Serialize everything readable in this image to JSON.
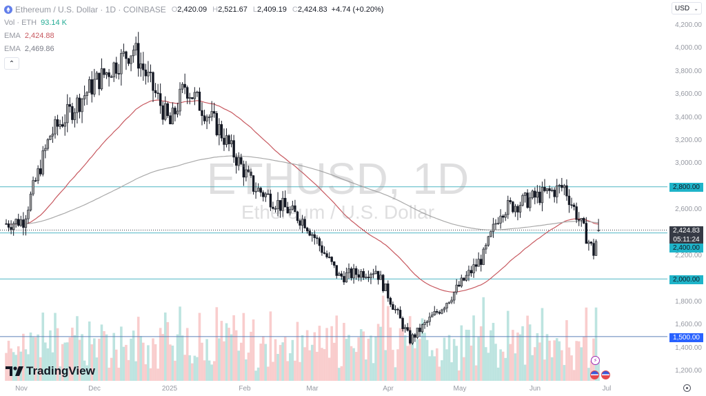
{
  "header": {
    "symbol_title": "Ethereum / U.S. Dollar · 1D · COINBASE",
    "symbol_icon": "ethereum-icon",
    "ohlc": [
      {
        "key": "O",
        "value": "2,420.09"
      },
      {
        "key": "H",
        "value": "2,521.67"
      },
      {
        "key": "L",
        "value": "2,409.19"
      },
      {
        "key": "C",
        "value": "2,424.83"
      }
    ],
    "change": "+4.74 (+0.20%)"
  },
  "indicators": {
    "volume": {
      "label": "Vol · ETH",
      "value": "93.14 K"
    },
    "ema1": {
      "label": "EMA",
      "value": "2,424.88",
      "color": "#c7585f"
    },
    "ema2": {
      "label": "EMA",
      "value": "2,469.86",
      "color": "#9598a1"
    },
    "collapse_icon": "chevron-up-icon"
  },
  "currency": {
    "label": "USD",
    "icon": "chevron-down-icon"
  },
  "watermark": {
    "line1": "ETHUSD, 1D",
    "line2": "Ethereum / U.S. Dollar"
  },
  "branding": {
    "logo_text": "TradingView"
  },
  "price_axis": {
    "ticks": [
      "4,200.00",
      "4,000.00",
      "3,800.00",
      "3,600.00",
      "3,400.00",
      "3,200.00",
      "3,000.00",
      "2,600.00",
      "2,200.00",
      "1,800.00",
      "1,600.00",
      "1,400.00",
      "1,200.00"
    ],
    "badges": [
      {
        "label": "2,800.00",
        "style": "teal"
      },
      {
        "label": "2,400.00",
        "style": "teal"
      },
      {
        "label": "2,000.00",
        "style": "teal"
      },
      {
        "label": "1,500.00",
        "style": "blue"
      }
    ],
    "last_price": {
      "price": "2,424.83",
      "countdown": "05:11:24"
    }
  },
  "time_axis": {
    "labels": [
      "Nov",
      "Dec",
      "2025",
      "Feb",
      "Mar",
      "Apr",
      "May",
      "Jun",
      "Jul"
    ]
  },
  "colors": {
    "horizontal_line": "#4fb6c4",
    "ema_fast": "#c7585f",
    "ema_slow": "#a9a9a9",
    "volume_up": "#b2dfdb",
    "volume_down": "#f8c4c4",
    "candle_up_body": "#9e9e9e",
    "candle_down_body": "#131722"
  },
  "chart_data": {
    "type": "candlestick",
    "title": "ETHUSD, 1D — Ethereum / U.S. Dollar (COINBASE)",
    "xlabel": "",
    "ylabel": "USD",
    "ylim": [
      1150,
      4300
    ],
    "x_range": [
      "2024-10-25",
      "2025-07-02"
    ],
    "horizontal_levels": [
      2800,
      2400,
      2000,
      1500
    ],
    "last": {
      "open": 2420.09,
      "high": 2521.67,
      "low": 2409.19,
      "close": 2424.83,
      "change": 4.74,
      "change_pct": 0.2
    },
    "ema_values": {
      "ema_fast": 2424.88,
      "ema_slow": 2469.86
    },
    "volume_last": "93.14K",
    "monthly_anchor_closes": [
      {
        "date": "2024-11-01",
        "close": 2510
      },
      {
        "date": "2024-11-12",
        "close": 3250
      },
      {
        "date": "2024-11-30",
        "close": 3700
      },
      {
        "date": "2024-12-16",
        "close": 4000
      },
      {
        "date": "2024-12-31",
        "close": 3340
      },
      {
        "date": "2025-01-06",
        "close": 3680
      },
      {
        "date": "2025-01-20",
        "close": 3300
      },
      {
        "date": "2025-02-03",
        "close": 2800
      },
      {
        "date": "2025-02-24",
        "close": 2500
      },
      {
        "date": "2025-03-10",
        "close": 2020
      },
      {
        "date": "2025-03-25",
        "close": 2080
      },
      {
        "date": "2025-04-08",
        "close": 1470
      },
      {
        "date": "2025-04-22",
        "close": 1780
      },
      {
        "date": "2025-05-08",
        "close": 2200
      },
      {
        "date": "2025-05-15",
        "close": 2600
      },
      {
        "date": "2025-06-10",
        "close": 2800
      },
      {
        "date": "2025-06-22",
        "close": 2230
      },
      {
        "date": "2025-06-24",
        "close": 2424.83
      }
    ]
  }
}
